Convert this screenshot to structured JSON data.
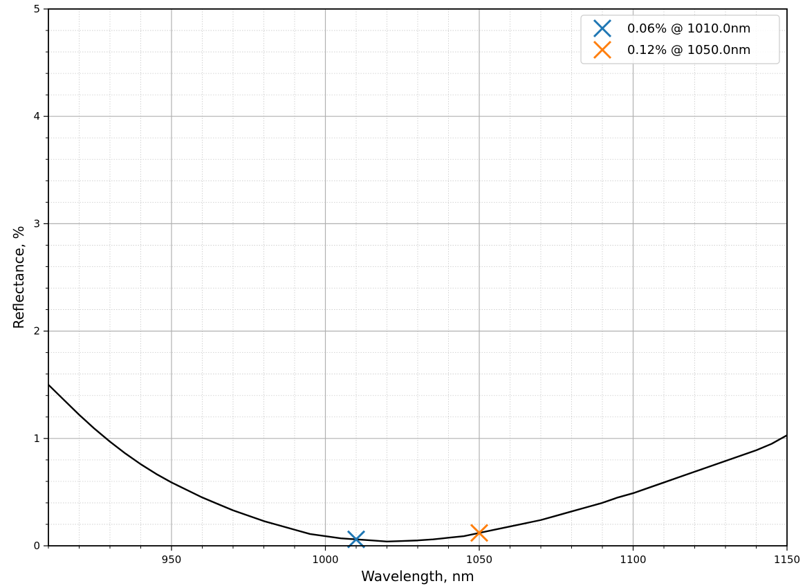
{
  "chart_data": {
    "type": "line",
    "xlabel": "Wavelength, nm",
    "ylabel": "Reflectance, %",
    "xlim": [
      910,
      1150
    ],
    "ylim": [
      0,
      5
    ],
    "xticks": [
      950,
      1000,
      1050,
      1100,
      1150
    ],
    "yticks": [
      0,
      1,
      2,
      3,
      4,
      5
    ],
    "x_minor_step": 10,
    "y_minor_step": 0.2,
    "grid": true,
    "legend_position": "top-right",
    "line_color": "#000000",
    "series": [
      {
        "x": [
          910,
          915,
          920,
          925,
          930,
          935,
          940,
          945,
          950,
          955,
          960,
          965,
          970,
          975,
          980,
          985,
          990,
          995,
          1000,
          1005,
          1010,
          1015,
          1020,
          1025,
          1030,
          1035,
          1040,
          1045,
          1050,
          1055,
          1060,
          1065,
          1070,
          1075,
          1080,
          1085,
          1090,
          1095,
          1100,
          1105,
          1110,
          1115,
          1120,
          1125,
          1130,
          1135,
          1140,
          1145,
          1150
        ],
        "y": [
          1.5,
          1.36,
          1.22,
          1.09,
          0.97,
          0.86,
          0.76,
          0.67,
          0.59,
          0.52,
          0.45,
          0.39,
          0.33,
          0.28,
          0.23,
          0.19,
          0.15,
          0.11,
          0.09,
          0.07,
          0.06,
          0.05,
          0.04,
          0.045,
          0.05,
          0.06,
          0.075,
          0.09,
          0.12,
          0.15,
          0.18,
          0.21,
          0.24,
          0.28,
          0.32,
          0.36,
          0.4,
          0.45,
          0.49,
          0.54,
          0.59,
          0.64,
          0.69,
          0.74,
          0.79,
          0.84,
          0.89,
          0.95,
          1.03
        ]
      }
    ],
    "markers": [
      {
        "label": "0.06% @ 1010.0nm",
        "x": 1010.0,
        "y": 0.06,
        "color": "#1f77b4",
        "symbol": "x"
      },
      {
        "label": "0.12% @ 1050.0nm",
        "x": 1050.0,
        "y": 0.12,
        "color": "#ff7f0e",
        "symbol": "x"
      }
    ]
  }
}
